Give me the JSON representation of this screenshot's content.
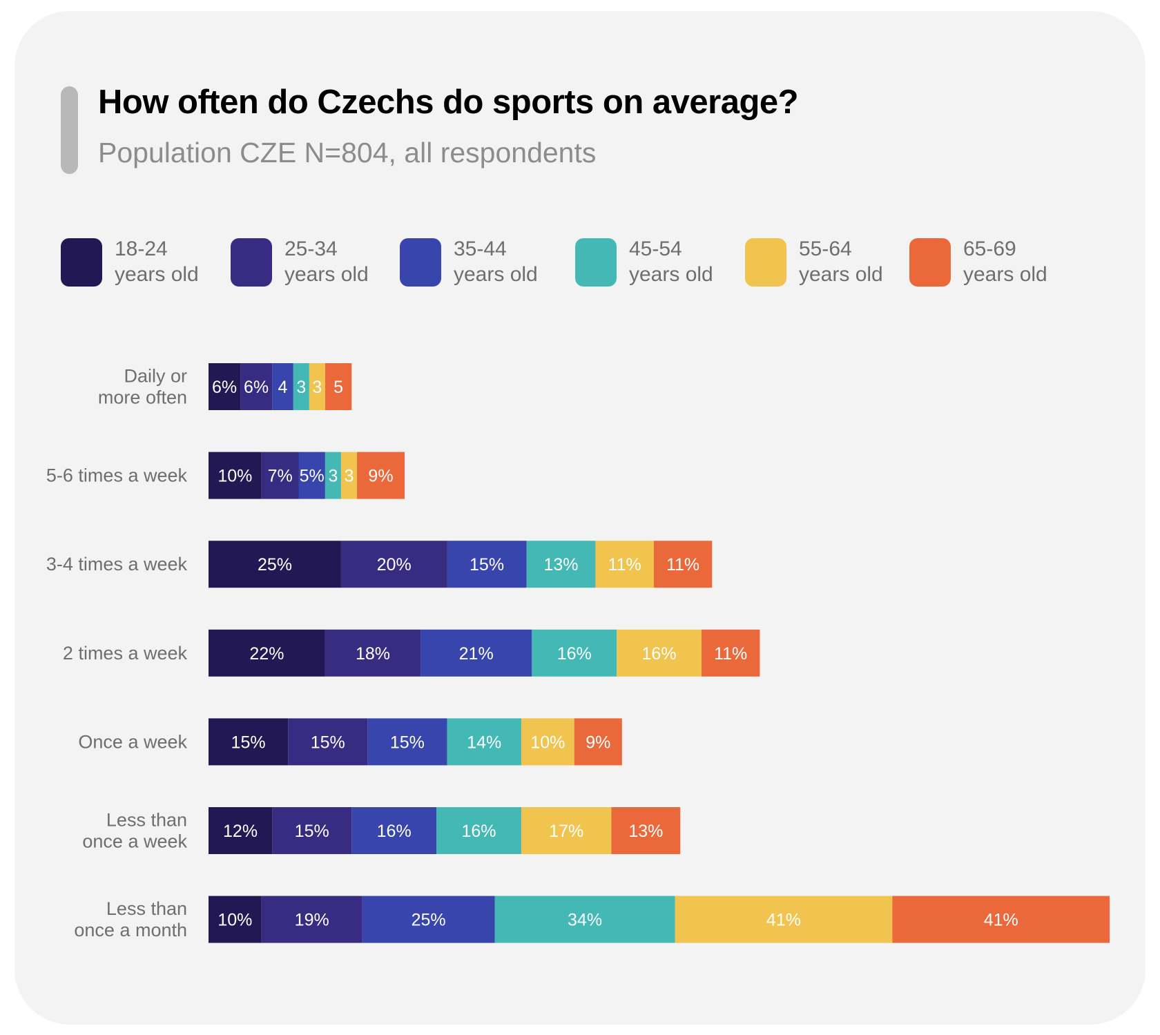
{
  "header": {
    "title": "How often do Czechs do sports on average?",
    "subtitle": "Population CZE N=804, all respondents"
  },
  "chart_data": {
    "type": "bar",
    "orientation": "horizontal",
    "stacked": true,
    "title": "How often do Czechs do sports on average?",
    "subtitle": "Population CZE N=804, all respondents",
    "xlabel": "",
    "ylabel": "",
    "grid": false,
    "legend_position": "top",
    "categories": [
      [
        "Daily or",
        "more often"
      ],
      [
        "5-6 times a week"
      ],
      [
        "3-4 times a week"
      ],
      [
        "2 times a week"
      ],
      [
        "Once a week"
      ],
      [
        "Less than",
        "once a week"
      ],
      [
        "Less than",
        "once a month"
      ]
    ],
    "series": [
      {
        "name": "18-24 years old",
        "line1": "18-24",
        "line2": "years old",
        "color": "#221854",
        "values": [
          6,
          10,
          25,
          22,
          15,
          12,
          10
        ],
        "labels": [
          "6%",
          "10%",
          "25%",
          "22%",
          "15%",
          "12%",
          "10%"
        ]
      },
      {
        "name": "25-34 years old",
        "line1": "25-34",
        "line2": "years old",
        "color": "#372b82",
        "values": [
          6,
          7,
          20,
          18,
          15,
          15,
          19
        ],
        "labels": [
          "6%",
          "7%",
          "20%",
          "18%",
          "15%",
          "15%",
          "19%"
        ]
      },
      {
        "name": "35-44 years old",
        "line1": "35-44",
        "line2": "years old",
        "color": "#3745ad",
        "values": [
          4,
          5,
          15,
          21,
          15,
          16,
          25
        ],
        "labels": [
          "4",
          "5%",
          "15%",
          "21%",
          "15%",
          "16%",
          "25%"
        ]
      },
      {
        "name": "45-54 years old",
        "line1": "45-54",
        "line2": "years old",
        "color": "#44b8b5",
        "values": [
          3,
          3,
          13,
          16,
          14,
          16,
          34
        ],
        "labels": [
          "3",
          "3",
          "13%",
          "16%",
          "14%",
          "16%",
          "34%"
        ]
      },
      {
        "name": "55-64 years old",
        "line1": "55-64",
        "line2": "years old",
        "color": "#f0c44f",
        "values": [
          3,
          3,
          11,
          16,
          10,
          17,
          41
        ],
        "labels": [
          "3",
          "3",
          "11%",
          "16%",
          "10%",
          "17%",
          "41%"
        ]
      },
      {
        "name": "65-69 years old",
        "line1": "65-69",
        "line2": "years old",
        "color": "#ea683a",
        "values": [
          5,
          9,
          11,
          11,
          9,
          13,
          41
        ],
        "labels": [
          "5",
          "9%",
          "11%",
          "11%",
          "9%",
          "13%",
          "41%"
        ]
      }
    ],
    "unit": "%"
  }
}
